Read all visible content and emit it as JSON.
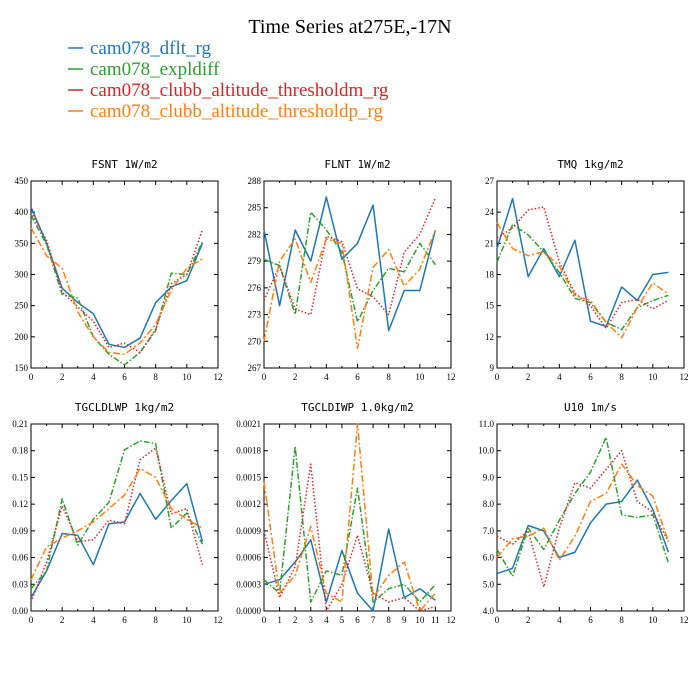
{
  "figure": {
    "title": "Time Series at275E,-17N"
  },
  "legend": [
    {
      "label": "cam078_dflt_rg",
      "color": "#1f77b4",
      "dash": "solid"
    },
    {
      "label": "cam078_expldiff",
      "color": "#2ca02c",
      "dash": "dashdot"
    },
    {
      "label": "cam078_clubb_altitude_thresholdm_rg",
      "color": "#d62728",
      "dash": "dotted"
    },
    {
      "label": "cam078_clubb_altitude_thresholdp_rg",
      "color": "#ff7f0e",
      "dash": "dashdotlong"
    }
  ],
  "chart_data": [
    {
      "type": "line",
      "title": "FSNT   1W/m2",
      "xlim": [
        0,
        12
      ],
      "ylim": [
        150,
        450
      ],
      "xticks": [
        "0",
        "2",
        "4",
        "6",
        "8",
        "10",
        "12"
      ],
      "yticks": [
        "150",
        "200",
        "250",
        "300",
        "350",
        "400",
        "450"
      ],
      "x": [
        0,
        1,
        2,
        3,
        4,
        5,
        6,
        7,
        8,
        9,
        10,
        11
      ],
      "series": [
        {
          "name": "cam078_dflt_rg",
          "values": [
            408,
            350,
            278,
            255,
            237,
            188,
            183,
            198,
            255,
            280,
            290,
            350
          ]
        },
        {
          "name": "cam078_expldiff",
          "values": [
            395,
            348,
            268,
            262,
            200,
            172,
            155,
            175,
            210,
            302,
            300,
            352
          ]
        },
        {
          "name": "cam078_clubb_altitude_thresholdm_rg",
          "values": [
            400,
            355,
            272,
            248,
            225,
            183,
            190,
            175,
            212,
            285,
            300,
            372
          ]
        },
        {
          "name": "cam078_clubb_altitude_thresholdp_rg",
          "values": [
            375,
            330,
            310,
            240,
            200,
            175,
            172,
            190,
            220,
            275,
            310,
            325
          ]
        }
      ]
    },
    {
      "type": "line",
      "title": "FLNT   1W/m2",
      "xlim": [
        0,
        12
      ],
      "ylim": [
        267,
        288
      ],
      "xticks": [
        "0",
        "2",
        "4",
        "6",
        "8",
        "10",
        "12"
      ],
      "yticks": [
        "267",
        "270",
        "273",
        "276",
        "279",
        "282",
        "285",
        "288"
      ],
      "x": [
        0,
        1,
        2,
        3,
        4,
        5,
        6,
        7,
        8,
        9,
        10,
        11
      ],
      "series": [
        {
          "name": "cam078_dflt_rg",
          "values": [
            282.5,
            274.0,
            282.5,
            279.0,
            286.2,
            279.2,
            281.0,
            285.3,
            271.2,
            275.7,
            275.7,
            282.5
          ]
        },
        {
          "name": "cam078_expldiff",
          "values": [
            279.2,
            278.5,
            273.0,
            284.5,
            282.5,
            280.0,
            272.2,
            275.7,
            278.2,
            277.8,
            281.0,
            278.6
          ]
        },
        {
          "name": "cam078_clubb_altitude_thresholdm_rg",
          "values": [
            274.6,
            278.5,
            273.6,
            273.0,
            281.8,
            281.2,
            275.9,
            275.0,
            273.0,
            280.0,
            282.0,
            286.1
          ]
        },
        {
          "name": "cam078_clubb_altitude_thresholdp_rg",
          "values": [
            270.0,
            279.0,
            281.5,
            276.6,
            281.5,
            281.0,
            269.2,
            278.3,
            280.3,
            276.2,
            278.1,
            282.5
          ]
        }
      ]
    },
    {
      "type": "line",
      "title": "TMQ   1kg/m2",
      "xlim": [
        0,
        12
      ],
      "ylim": [
        9,
        27
      ],
      "xticks": [
        "0",
        "2",
        "4",
        "6",
        "8",
        "10",
        "12"
      ],
      "yticks": [
        "9",
        "12",
        "15",
        "18",
        "21",
        "24",
        "27"
      ],
      "x": [
        0,
        1,
        2,
        3,
        4,
        5,
        6,
        7,
        8,
        9,
        10,
        11
      ],
      "series": [
        {
          "name": "cam078_dflt_rg",
          "values": [
            20.5,
            25.3,
            17.8,
            20.5,
            17.8,
            21.3,
            13.5,
            13.0,
            16.8,
            15.5,
            18.0,
            18.2
          ]
        },
        {
          "name": "cam078_expldiff",
          "values": [
            19.2,
            22.8,
            21.8,
            20.2,
            18.2,
            15.7,
            15.3,
            13.4,
            12.7,
            14.8,
            15.5,
            16.0
          ]
        },
        {
          "name": "cam078_clubb_altitude_thresholdm_rg",
          "values": [
            21.5,
            22.5,
            24.2,
            24.5,
            19.2,
            16.2,
            15.0,
            12.8,
            15.3,
            15.6,
            14.7,
            15.5
          ]
        },
        {
          "name": "cam078_clubb_altitude_thresholdp_rg",
          "values": [
            23.0,
            20.5,
            19.8,
            20.2,
            18.8,
            16.0,
            15.5,
            13.4,
            11.9,
            14.8,
            17.2,
            16.1
          ]
        }
      ]
    },
    {
      "type": "line",
      "title": "TGCLDLWP   1kg/m2",
      "xlim": [
        0,
        12
      ],
      "ylim": [
        0.0,
        0.21
      ],
      "xticks": [
        "0",
        "2",
        "4",
        "6",
        "8",
        "10",
        "12"
      ],
      "yticks": [
        "0.00",
        "0.03",
        "0.06",
        "0.09",
        "0.12",
        "0.15",
        "0.18",
        "0.21"
      ],
      "x": [
        0,
        1,
        2,
        3,
        4,
        5,
        6,
        7,
        8,
        9,
        10,
        11
      ],
      "series": [
        {
          "name": "cam078_dflt_rg",
          "values": [
            0.015,
            0.045,
            0.087,
            0.085,
            0.052,
            0.098,
            0.1,
            0.132,
            0.103,
            0.124,
            0.143,
            0.078
          ]
        },
        {
          "name": "cam078_expldiff",
          "values": [
            0.025,
            0.045,
            0.126,
            0.074,
            0.103,
            0.122,
            0.181,
            0.191,
            0.188,
            0.093,
            0.11,
            0.075
          ]
        },
        {
          "name": "cam078_clubb_altitude_thresholdm_rg",
          "values": [
            0.01,
            0.055,
            0.118,
            0.078,
            0.08,
            0.102,
            0.098,
            0.17,
            0.183,
            0.109,
            0.115,
            0.052
          ]
        },
        {
          "name": "cam078_clubb_altitude_thresholdp_rg",
          "values": [
            0.035,
            0.072,
            0.082,
            0.09,
            0.1,
            0.115,
            0.13,
            0.16,
            0.15,
            0.115,
            0.103,
            0.093
          ]
        }
      ]
    },
    {
      "type": "line",
      "title": "TGCLDIWP   1.0kg/m2",
      "xlim": [
        0,
        12
      ],
      "ylim": [
        0.0,
        0.0021
      ],
      "xticks": [
        "0",
        "1",
        "2",
        "3",
        "4",
        "5",
        "6",
        "7",
        "8",
        "9",
        "10",
        "11",
        "12"
      ],
      "yticks": [
        "0.0000",
        "0.0003",
        "0.0006",
        "0.0009",
        "0.0012",
        "0.0015",
        "0.0018",
        "0.0021"
      ],
      "x": [
        0,
        1,
        2,
        3,
        4,
        5,
        6,
        7,
        8,
        9,
        10,
        11
      ],
      "series": [
        {
          "name": "cam078_dflt_rg",
          "values": [
            0.0003,
            0.00035,
            0.00055,
            0.0008,
            0.0001,
            0.00068,
            0.0002,
            0.0,
            0.00092,
            0.00015,
            0.00025,
            0.00012
          ]
        },
        {
          "name": "cam078_expldiff",
          "values": [
            0.00035,
            0.0002,
            0.00185,
            0.0001,
            0.00045,
            0.0004,
            0.00138,
            0.0001,
            0.00025,
            0.0003,
            0.0001,
            0.0003
          ]
        },
        {
          "name": "cam078_clubb_altitude_thresholdm_rg",
          "values": [
            0.0009,
            0.00015,
            0.0005,
            0.00165,
            0.0,
            0.0003,
            0.00085,
            0.0002,
            0.0001,
            0.00015,
            0.0,
            5e-05
          ]
        },
        {
          "name": "cam078_clubb_altitude_thresholdp_rg",
          "values": [
            0.00145,
            0.0002,
            0.0004,
            0.00095,
            0.0002,
            0.0001,
            0.0021,
            0.00015,
            0.0004,
            0.00055,
            0.0,
            0.0002
          ]
        }
      ]
    },
    {
      "type": "line",
      "title": "U10   1m/s",
      "xlim": [
        0,
        12
      ],
      "ylim": [
        4.0,
        11.0
      ],
      "xticks": [
        "0",
        "2",
        "4",
        "6",
        "8",
        "10",
        "12"
      ],
      "yticks": [
        "4.0",
        "5.0",
        "6.0",
        "7.0",
        "8.0",
        "9.0",
        "10.0",
        "11.0"
      ],
      "x": [
        0,
        1,
        2,
        3,
        4,
        5,
        6,
        7,
        8,
        9,
        10,
        11
      ],
      "series": [
        {
          "name": "cam078_dflt_rg",
          "values": [
            5.4,
            5.6,
            7.2,
            7.0,
            6.0,
            6.2,
            7.3,
            8.0,
            8.1,
            8.9,
            7.8,
            6.2
          ]
        },
        {
          "name": "cam078_expldiff",
          "values": [
            6.3,
            5.3,
            7.1,
            6.3,
            7.4,
            8.4,
            9.2,
            10.5,
            7.6,
            7.5,
            7.6,
            5.8
          ]
        },
        {
          "name": "cam078_clubb_altitude_thresholdm_rg",
          "values": [
            6.8,
            6.5,
            7.0,
            4.9,
            7.1,
            8.8,
            8.6,
            9.3,
            10.0,
            8.1,
            7.7,
            6.6
          ]
        },
        {
          "name": "cam078_clubb_altitude_thresholdp_rg",
          "values": [
            6.0,
            6.7,
            6.8,
            7.1,
            5.9,
            6.8,
            8.1,
            8.4,
            9.5,
            8.7,
            8.3,
            6.6
          ]
        }
      ]
    }
  ]
}
